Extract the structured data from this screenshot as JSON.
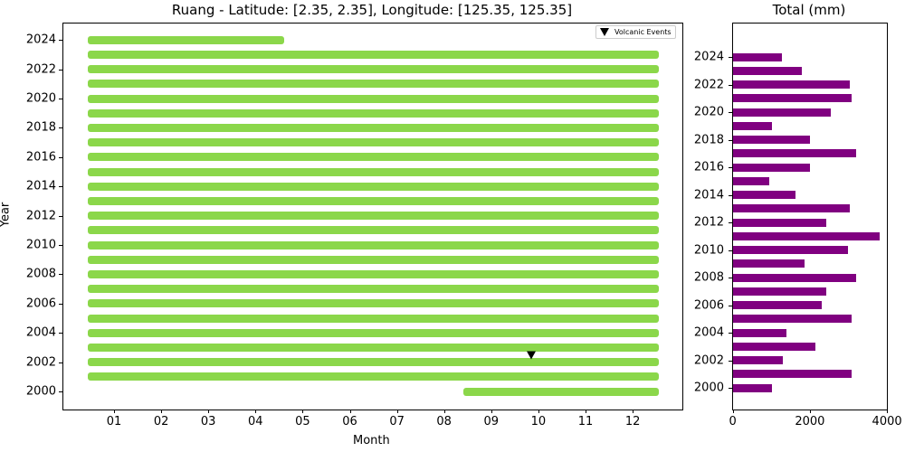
{
  "chart_data": [
    {
      "type": "timeline-bar",
      "title": "Ruang - Latitude: [2.35, 2.35], Longitude: [125.35, 125.35]",
      "xlabel": "Month",
      "ylabel": "Year",
      "x_ticks": [
        "01",
        "02",
        "03",
        "04",
        "05",
        "06",
        "07",
        "08",
        "09",
        "10",
        "11",
        "12"
      ],
      "y_ticks": [
        2000,
        2002,
        2004,
        2006,
        2008,
        2010,
        2012,
        2014,
        2016,
        2018,
        2020,
        2022,
        2024
      ],
      "legend": [
        {
          "label": "Volcanic Events",
          "marker": "triangle-down",
          "color": "#000000"
        }
      ],
      "bar_color": "#8bd74a",
      "coverage": [
        {
          "year": 2000,
          "start_month": 8.4,
          "end_month": 12.55
        },
        {
          "year": 2001,
          "start_month": 0.45,
          "end_month": 12.55
        },
        {
          "year": 2002,
          "start_month": 0.45,
          "end_month": 12.55
        },
        {
          "year": 2003,
          "start_month": 0.45,
          "end_month": 12.55
        },
        {
          "year": 2004,
          "start_month": 0.45,
          "end_month": 12.55
        },
        {
          "year": 2005,
          "start_month": 0.45,
          "end_month": 12.55
        },
        {
          "year": 2006,
          "start_month": 0.45,
          "end_month": 12.55
        },
        {
          "year": 2007,
          "start_month": 0.45,
          "end_month": 12.55
        },
        {
          "year": 2008,
          "start_month": 0.45,
          "end_month": 12.55
        },
        {
          "year": 2009,
          "start_month": 0.45,
          "end_month": 12.55
        },
        {
          "year": 2010,
          "start_month": 0.45,
          "end_month": 12.55
        },
        {
          "year": 2011,
          "start_month": 0.45,
          "end_month": 12.55
        },
        {
          "year": 2012,
          "start_month": 0.45,
          "end_month": 12.55
        },
        {
          "year": 2013,
          "start_month": 0.45,
          "end_month": 12.55
        },
        {
          "year": 2014,
          "start_month": 0.45,
          "end_month": 12.55
        },
        {
          "year": 2015,
          "start_month": 0.45,
          "end_month": 12.55
        },
        {
          "year": 2016,
          "start_month": 0.45,
          "end_month": 12.55
        },
        {
          "year": 2017,
          "start_month": 0.45,
          "end_month": 12.55
        },
        {
          "year": 2018,
          "start_month": 0.45,
          "end_month": 12.55
        },
        {
          "year": 2019,
          "start_month": 0.45,
          "end_month": 12.55
        },
        {
          "year": 2020,
          "start_month": 0.45,
          "end_month": 12.55
        },
        {
          "year": 2021,
          "start_month": 0.45,
          "end_month": 12.55
        },
        {
          "year": 2022,
          "start_month": 0.45,
          "end_month": 12.55
        },
        {
          "year": 2023,
          "start_month": 0.45,
          "end_month": 12.55
        },
        {
          "year": 2024,
          "start_month": 0.45,
          "end_month": 4.6
        }
      ],
      "events": [
        {
          "year": 2002.5,
          "month": 9.85,
          "label": "Volcanic Events"
        }
      ]
    },
    {
      "type": "bar",
      "orientation": "horizontal",
      "title": "Total (mm)",
      "xlabel": "",
      "ylabel": "",
      "x_ticks": [
        0,
        2000,
        4000
      ],
      "xlim": [
        0,
        4000
      ],
      "y_ticks": [
        2000,
        2002,
        2004,
        2006,
        2008,
        2010,
        2012,
        2014,
        2016,
        2018,
        2020,
        2022,
        2024
      ],
      "bar_color": "#800080",
      "categories": [
        2000,
        2001,
        2002,
        2003,
        2004,
        2005,
        2006,
        2007,
        2008,
        2009,
        2010,
        2011,
        2012,
        2013,
        2014,
        2015,
        2016,
        2017,
        2018,
        2019,
        2020,
        2021,
        2022,
        2023,
        2024
      ],
      "values": [
        1015,
        3080,
        1300,
        2140,
        1390,
        3080,
        2315,
        2420,
        3200,
        1860,
        2980,
        3810,
        2420,
        3035,
        1625,
        945,
        2000,
        3200,
        2000,
        1015,
        2540,
        3080,
        3035,
        1790,
        1275
      ]
    }
  ]
}
